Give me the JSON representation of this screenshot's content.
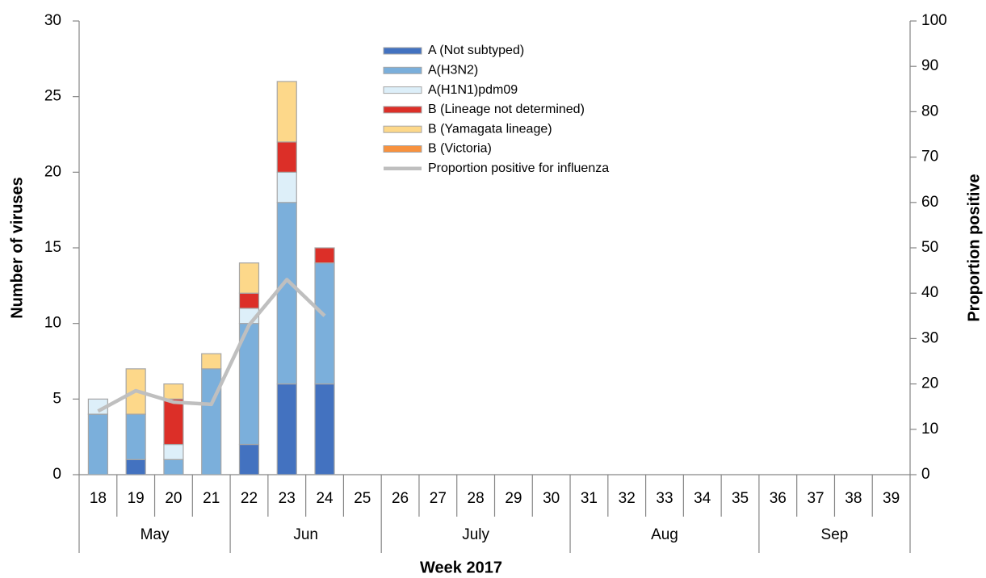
{
  "chart_data": {
    "type": "bar",
    "stacked": true,
    "x_label": "Week 2017",
    "y_label": "Number of viruses",
    "y2_label": "Proportion positive",
    "categories": [
      "18",
      "19",
      "20",
      "21",
      "22",
      "23",
      "24",
      "25",
      "26",
      "27",
      "28",
      "29",
      "30",
      "31",
      "32",
      "33",
      "34",
      "35",
      "36",
      "37",
      "38",
      "39"
    ],
    "months": [
      "May",
      "May",
      "May",
      "May",
      "Jun",
      "Jun",
      "Jun",
      "Jun",
      "July",
      "July",
      "July",
      "July",
      "July",
      "Aug",
      "Aug",
      "Aug",
      "Aug",
      "Aug",
      "Sep",
      "Sep",
      "Sep",
      "Sep"
    ],
    "ylim": [
      0,
      30
    ],
    "yticks": [
      0,
      5,
      10,
      15,
      20,
      25,
      30
    ],
    "y2lim": [
      0,
      100
    ],
    "y2ticks": [
      0,
      10,
      20,
      30,
      40,
      50,
      60,
      70,
      80,
      90,
      100
    ],
    "series": [
      {
        "name": "A (Not subtyped)",
        "color": "#4372c0",
        "values": [
          0,
          1,
          0,
          0,
          2,
          6,
          6,
          null,
          null,
          null,
          null,
          null,
          null,
          null,
          null,
          null,
          null,
          null,
          null,
          null,
          null,
          null
        ]
      },
      {
        "name": "A(H3N2)",
        "color": "#7bafdb",
        "values": [
          4,
          3,
          1,
          7,
          8,
          12,
          8,
          null,
          null,
          null,
          null,
          null,
          null,
          null,
          null,
          null,
          null,
          null,
          null,
          null,
          null,
          null
        ]
      },
      {
        "name": "A(H1N1)pdm09",
        "color": "#ddeff9",
        "values": [
          1,
          0,
          1,
          0,
          1,
          2,
          0,
          null,
          null,
          null,
          null,
          null,
          null,
          null,
          null,
          null,
          null,
          null,
          null,
          null,
          null,
          null
        ]
      },
      {
        "name": "B (Lineage not determined)",
        "color": "#dc2f28",
        "values": [
          0,
          0,
          3,
          0,
          1,
          2,
          1,
          null,
          null,
          null,
          null,
          null,
          null,
          null,
          null,
          null,
          null,
          null,
          null,
          null,
          null,
          null
        ]
      },
      {
        "name": "B (Yamagata lineage)",
        "color": "#fdd88a",
        "values": [
          0,
          3,
          1,
          1,
          2,
          4,
          0,
          null,
          null,
          null,
          null,
          null,
          null,
          null,
          null,
          null,
          null,
          null,
          null,
          null,
          null,
          null
        ]
      },
      {
        "name": "B (Victoria)",
        "color": "#f7923f",
        "values": [
          0,
          0,
          0,
          0,
          0,
          0,
          0,
          null,
          null,
          null,
          null,
          null,
          null,
          null,
          null,
          null,
          null,
          null,
          null,
          null,
          null,
          null
        ]
      },
      {
        "name": "Proportion positive for influenza",
        "color": "#bfbfbf",
        "type": "line",
        "axis": "y2",
        "values": [
          14,
          18.5,
          16,
          15.5,
          33,
          43,
          35,
          null,
          null,
          null,
          null,
          null,
          null,
          null,
          null,
          null,
          null,
          null,
          null,
          null,
          null,
          null
        ]
      }
    ]
  }
}
